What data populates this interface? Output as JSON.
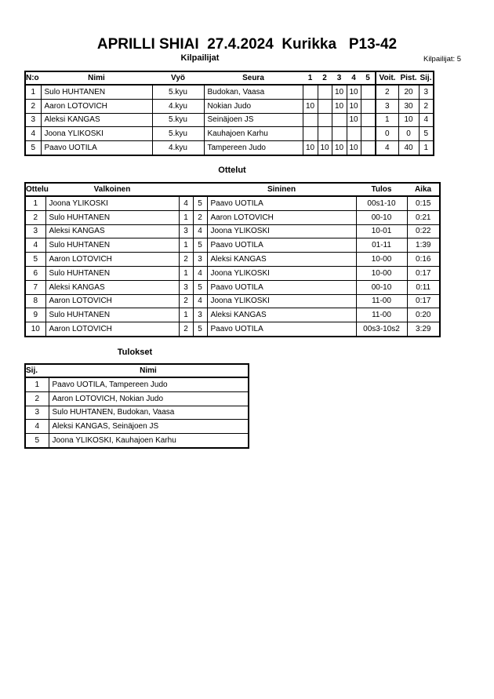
{
  "title": "APRILLI SHIAI  27.4.2024  Kurikka   P13-42",
  "competitors": {
    "heading": "Kilpailijat",
    "count_label": "Kilpailijat: 5",
    "columns": [
      "N:o",
      "Nimi",
      "Vyö",
      "Seura",
      "1",
      "2",
      "3",
      "4",
      "5",
      "Voit.",
      "Pist.",
      "Sij."
    ],
    "rows": [
      [
        "1",
        "Sulo HUHTANEN",
        "5.kyu",
        "Budokan, Vaasa",
        "",
        "",
        "10",
        "10",
        "",
        "2",
        "20",
        "3"
      ],
      [
        "2",
        "Aaron LOTOVICH",
        "4.kyu",
        "Nokian Judo",
        "10",
        "",
        "10",
        "10",
        "",
        "3",
        "30",
        "2"
      ],
      [
        "3",
        "Aleksi KANGAS",
        "5.kyu",
        "Seinäjoen JS",
        "",
        "",
        "",
        "10",
        "",
        "1",
        "10",
        "4"
      ],
      [
        "4",
        "Joona YLIKOSKI",
        "5.kyu",
        "Kauhajoen Karhu",
        "",
        "",
        "",
        "",
        "",
        "0",
        "0",
        "5"
      ],
      [
        "5",
        "Paavo UOTILA",
        "4.kyu",
        "Tampereen Judo",
        "10",
        "10",
        "10",
        "10",
        "",
        "4",
        "40",
        "1"
      ]
    ]
  },
  "matches": {
    "heading": "Ottelut",
    "columns": [
      "Ottelu",
      "Valkoinen",
      "",
      "",
      "Sininen",
      "Tulos",
      "Aika"
    ],
    "rows": [
      [
        "1",
        "Joona YLIKOSKI",
        "4",
        "5",
        "Paavo UOTILA",
        "00s1-10",
        "0:15"
      ],
      [
        "2",
        "Sulo HUHTANEN",
        "1",
        "2",
        "Aaron LOTOVICH",
        "00-10",
        "0:21"
      ],
      [
        "3",
        "Aleksi KANGAS",
        "3",
        "4",
        "Joona YLIKOSKI",
        "10-01",
        "0:22"
      ],
      [
        "4",
        "Sulo HUHTANEN",
        "1",
        "5",
        "Paavo UOTILA",
        "01-11",
        "1:39"
      ],
      [
        "5",
        "Aaron LOTOVICH",
        "2",
        "3",
        "Aleksi KANGAS",
        "10-00",
        "0:16"
      ],
      [
        "6",
        "Sulo HUHTANEN",
        "1",
        "4",
        "Joona YLIKOSKI",
        "10-00",
        "0:17"
      ],
      [
        "7",
        "Aleksi KANGAS",
        "3",
        "5",
        "Paavo UOTILA",
        "00-10",
        "0:11"
      ],
      [
        "8",
        "Aaron LOTOVICH",
        "2",
        "4",
        "Joona YLIKOSKI",
        "11-00",
        "0:17"
      ],
      [
        "9",
        "Sulo HUHTANEN",
        "1",
        "3",
        "Aleksi KANGAS",
        "11-00",
        "0:20"
      ],
      [
        "10",
        "Aaron LOTOVICH",
        "2",
        "5",
        "Paavo UOTILA",
        "00s3-10s2",
        "3:29"
      ]
    ]
  },
  "results": {
    "heading": "Tulokset",
    "columns": [
      "Sij.",
      "Nimi"
    ],
    "rows": [
      [
        "1",
        "Paavo UOTILA, Tampereen Judo"
      ],
      [
        "2",
        "Aaron LOTOVICH, Nokian Judo"
      ],
      [
        "3",
        "Sulo HUHTANEN, Budokan, Vaasa"
      ],
      [
        "4",
        "Aleksi KANGAS, Seinäjoen JS"
      ],
      [
        "5",
        "Joona YLIKOSKI, Kauhajoen Karhu"
      ]
    ]
  }
}
